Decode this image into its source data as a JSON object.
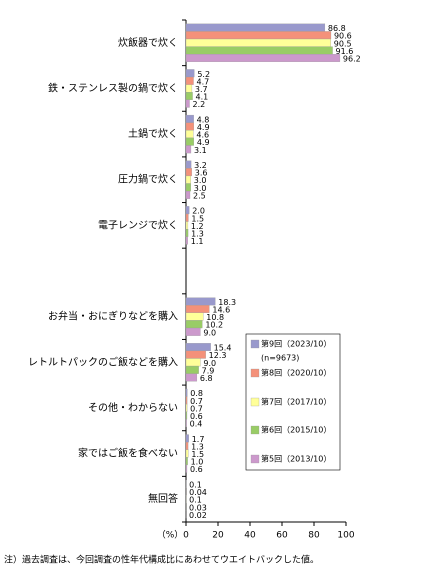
{
  "chart_data": {
    "type": "bar",
    "orientation": "horizontal",
    "categories": [
      "炊飯器で炊く",
      "鉄・ステンレス製の鍋で炊く",
      "土鍋で炊く",
      "圧力鍋で炊く",
      "電子レンジで炊く",
      null,
      "お弁当・おにぎりなどを購入",
      "レトルトパックのご飯などを購入",
      "その他・わからない",
      "家ではご飯を食べない",
      "無回答"
    ],
    "series": [
      {
        "name": "第9回（2023/10）",
        "color": "#9999cc",
        "values": [
          86.8,
          5.2,
          4.8,
          3.2,
          2.0,
          null,
          18.3,
          15.4,
          0.8,
          1.7,
          0.1
        ],
        "value_labels": [
          "86.8",
          "5.2",
          "4.8",
          "3.2",
          "2.0",
          null,
          "18.3",
          "15.4",
          "0.8",
          "1.7",
          "0.1"
        ]
      },
      {
        "name": "第8回（2020/10）",
        "color": "#f4917a",
        "values": [
          90.6,
          4.7,
          4.9,
          3.6,
          1.5,
          null,
          14.6,
          12.3,
          0.7,
          1.3,
          0.04
        ],
        "value_labels": [
          "90.6",
          "4.7",
          "4.9",
          "3.6",
          "1.5",
          null,
          "14.6",
          "12.3",
          "0.7",
          "1.3",
          "0.04"
        ]
      },
      {
        "name": "第7回（2017/10）",
        "color": "#ffff99",
        "values": [
          90.5,
          3.7,
          4.6,
          3.0,
          1.2,
          null,
          10.8,
          9.0,
          0.7,
          1.5,
          0.1
        ],
        "value_labels": [
          "90.5",
          "3.7",
          "4.6",
          "3.0",
          "1.2",
          null,
          "10.8",
          "9.0",
          "0.7",
          "1.5",
          "0.1"
        ]
      },
      {
        "name": "第6回（2015/10）",
        "color": "#99cc66",
        "values": [
          91.6,
          4.1,
          4.9,
          3.0,
          1.3,
          null,
          10.2,
          7.9,
          0.6,
          1.0,
          0.03
        ],
        "value_labels": [
          "91.6",
          "4.1",
          "4.9",
          "3.0",
          "1.3",
          null,
          "10.2",
          "7.9",
          "0.6",
          "1.0",
          "0.03"
        ]
      },
      {
        "name": "第5回（2013/10）",
        "color": "#cc99cc",
        "values": [
          96.2,
          2.2,
          3.1,
          2.5,
          1.1,
          null,
          9.0,
          6.8,
          0.4,
          0.6,
          0.02
        ],
        "value_labels": [
          "96.2",
          "2.2",
          "3.1",
          "2.5",
          "1.1",
          null,
          "9.0",
          "6.8",
          "0.4",
          "0.6",
          "0.02"
        ]
      }
    ],
    "legend_note": "(n=9673)",
    "xlabel": "（%）",
    "xlim": [
      0,
      100
    ],
    "xticks": [
      0,
      20,
      40,
      60,
      80,
      100
    ],
    "footnote": "注）過去調査は、今回調査の性年代構成比にあわせてウエイトバックした値。"
  }
}
